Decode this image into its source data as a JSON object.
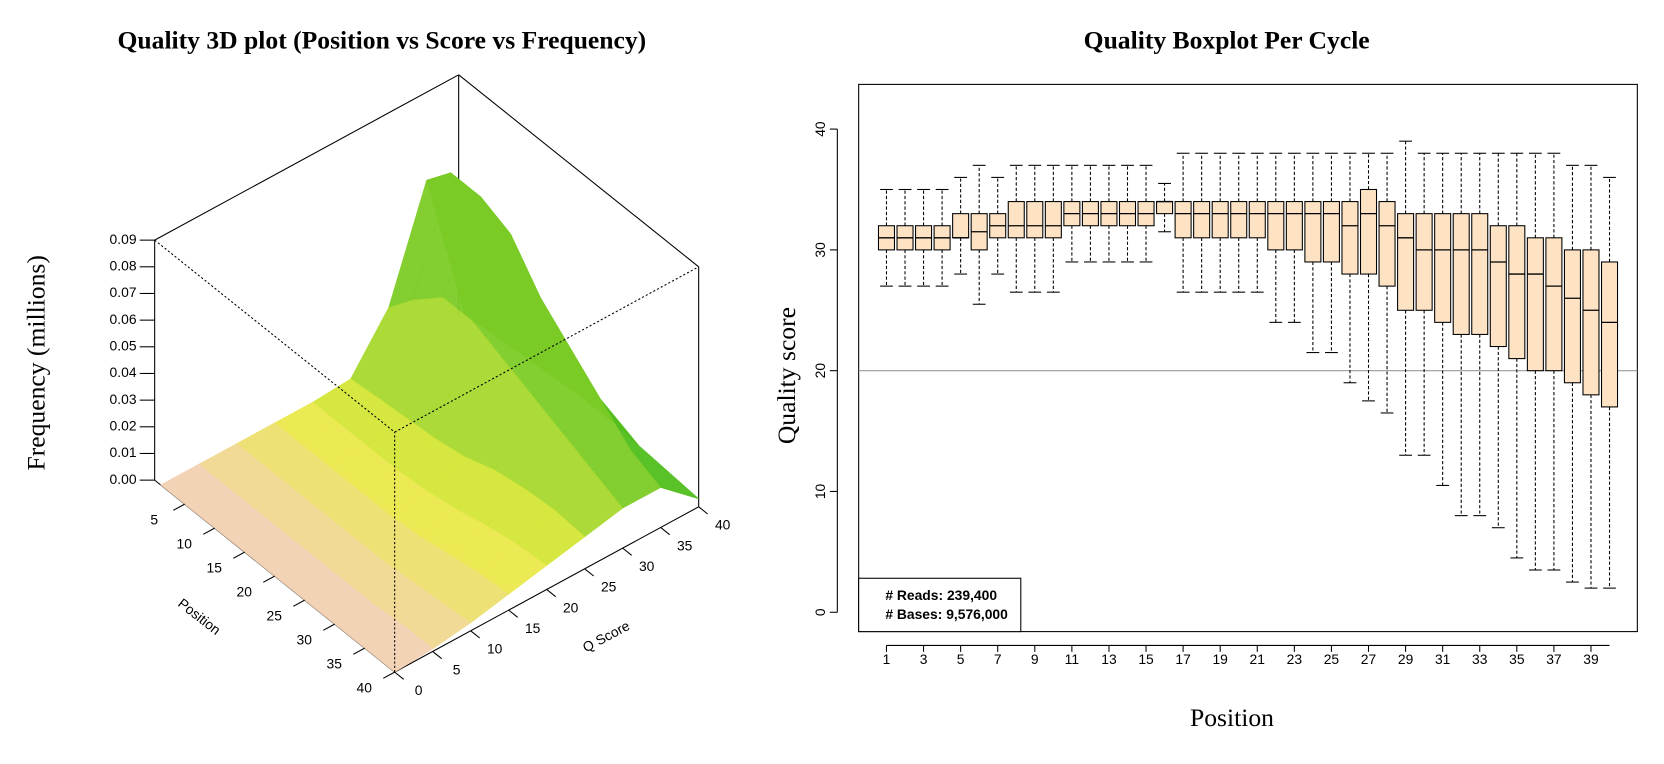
{
  "chart_data": [
    {
      "type": "surface",
      "title": "Quality 3D plot (Position vs Score vs Frequency)",
      "xlabel": "Position",
      "ylabel": "Q Score",
      "zlabel": "Frequency (millions)",
      "x": [
        1,
        5,
        10,
        15,
        20,
        25,
        30,
        35,
        40
      ],
      "y": [
        0,
        5,
        10,
        15,
        20,
        25,
        30,
        35,
        40
      ],
      "z": [
        [
          0,
          0,
          0,
          0,
          0,
          0.001,
          0.02,
          0.06,
          0.002
        ],
        [
          0,
          0,
          0,
          0,
          0,
          0.002,
          0.03,
          0.07,
          0.003
        ],
        [
          0,
          0,
          0,
          0,
          0,
          0.003,
          0.04,
          0.07,
          0.004
        ],
        [
          0,
          0,
          0,
          0,
          0,
          0.004,
          0.04,
          0.065,
          0.005
        ],
        [
          0,
          0,
          0,
          0,
          0.001,
          0.006,
          0.035,
          0.05,
          0.006
        ],
        [
          0,
          0,
          0,
          0.001,
          0.003,
          0.01,
          0.03,
          0.04,
          0.006
        ],
        [
          0,
          0,
          0.001,
          0.003,
          0.006,
          0.012,
          0.025,
          0.03,
          0.005
        ],
        [
          0,
          0.001,
          0.002,
          0.005,
          0.008,
          0.013,
          0.02,
          0.02,
          0.004
        ],
        [
          0,
          0.001,
          0.003,
          0.006,
          0.009,
          0.012,
          0.015,
          0.015,
          0.003
        ]
      ],
      "xlim": [
        0,
        40
      ],
      "ylim": [
        0,
        40
      ],
      "zlim": [
        0,
        0.09
      ],
      "xticks": [
        5,
        10,
        15,
        20,
        25,
        30,
        35,
        40
      ],
      "yticks": [
        0,
        5,
        10,
        15,
        20,
        25,
        30,
        35,
        40
      ],
      "zticks": [
        {
          "value": 0,
          "label": "0.00"
        },
        0.01,
        0.02,
        0.03,
        0.04,
        0.05,
        0.06,
        0.07,
        0.08,
        0.09
      ]
    },
    {
      "type": "boxplot",
      "title": "Quality Boxplot Per Cycle",
      "xlabel": "Position",
      "ylabel": "Quality score",
      "x": [
        1,
        2,
        3,
        4,
        5,
        6,
        7,
        8,
        9,
        10,
        11,
        12,
        13,
        14,
        15,
        16,
        17,
        18,
        19,
        20,
        21,
        22,
        23,
        24,
        25,
        26,
        27,
        28,
        29,
        30,
        31,
        32,
        33,
        34,
        35,
        36,
        37,
        38,
        39,
        40
      ],
      "whislo": [
        27,
        27,
        27,
        27,
        28,
        25.5,
        28,
        26.5,
        26.5,
        26.5,
        29,
        29,
        29,
        29,
        29,
        31.5,
        26.5,
        26.5,
        26.5,
        26.5,
        26.5,
        24,
        24,
        21.5,
        21.5,
        19,
        17.5,
        16.5,
        13,
        13,
        10.5,
        8,
        8,
        7,
        4.5,
        3.5,
        3.5,
        2.5,
        2,
        2
      ],
      "q1": [
        30,
        30,
        30,
        30,
        31,
        30,
        31,
        31,
        31,
        31,
        32,
        32,
        32,
        32,
        32,
        33,
        31,
        31,
        31,
        31,
        31,
        30,
        30,
        29,
        29,
        28,
        28,
        27,
        25,
        25,
        24,
        23,
        23,
        22,
        21,
        20,
        20,
        19,
        18,
        17
      ],
      "med": [
        31,
        31,
        31,
        31,
        31,
        31.5,
        32,
        32,
        32,
        32,
        33,
        33,
        33,
        33,
        33,
        34,
        33,
        33,
        33,
        33,
        33,
        33,
        33,
        33,
        33,
        32,
        33,
        32,
        31,
        30,
        30,
        30,
        30,
        29,
        28,
        28,
        27,
        26,
        25,
        24
      ],
      "q3": [
        32,
        32,
        32,
        32,
        33,
        33,
        33,
        34,
        34,
        34,
        34,
        34,
        34,
        34,
        34,
        34,
        34,
        34,
        34,
        34,
        34,
        34,
        34,
        34,
        34,
        34,
        35,
        34,
        33,
        33,
        33,
        33,
        33,
        32,
        32,
        31,
        31,
        30,
        30,
        29
      ],
      "whishi": [
        35,
        35,
        35,
        35,
        36,
        37,
        36,
        37,
        37,
        37,
        37,
        37,
        37,
        37,
        37,
        35.5,
        38,
        38,
        38,
        38,
        38,
        38,
        38,
        38,
        38,
        38,
        38,
        38,
        39,
        38,
        38,
        38,
        38,
        38,
        38,
        38,
        38,
        37,
        37,
        36
      ],
      "color": "#fde3c3",
      "hline": 20,
      "xlim": [
        -0.5,
        41.5
      ],
      "ylim": [
        -1.6,
        43.7
      ],
      "xticks": [
        1,
        3,
        5,
        7,
        9,
        11,
        13,
        15,
        17,
        19,
        21,
        23,
        25,
        27,
        29,
        31,
        33,
        35,
        37,
        39
      ],
      "yticks": [
        0,
        10,
        20,
        30,
        40
      ],
      "annotations": [
        "# Reads:  239,400",
        "# Bases: 9,576,000"
      ]
    }
  ]
}
